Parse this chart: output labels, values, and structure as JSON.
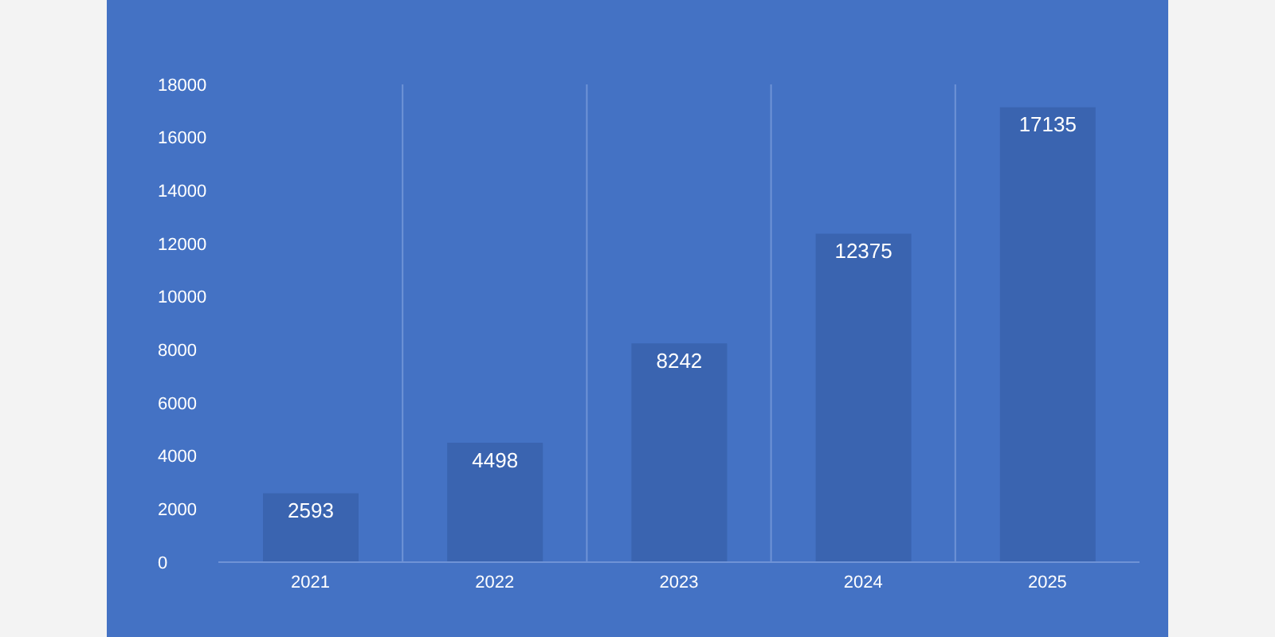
{
  "chart_data": {
    "type": "bar",
    "categories": [
      "2021",
      "2022",
      "2023",
      "2024",
      "2025"
    ],
    "values": [
      2593,
      4498,
      8242,
      12375,
      17135
    ],
    "color": "#3a64b0",
    "ylim": [
      0,
      18000
    ],
    "yticks": [
      0,
      2000,
      4000,
      6000,
      8000,
      10000,
      12000,
      14000,
      16000,
      18000
    ],
    "grid": "x",
    "data_labels": true,
    "legend": false
  }
}
